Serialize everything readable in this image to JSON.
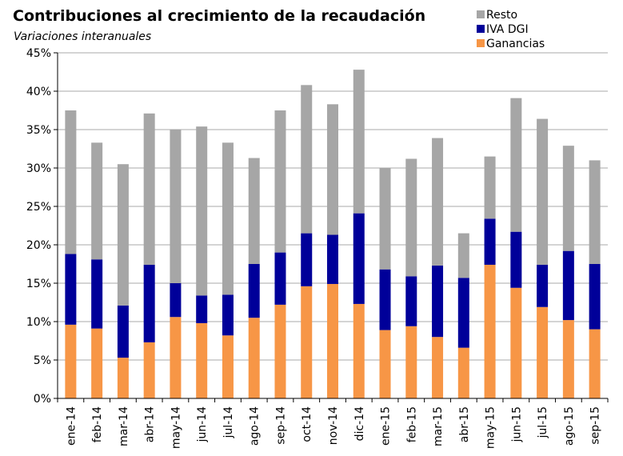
{
  "chart_data": {
    "type": "bar",
    "stacked": true,
    "title": "Contribuciones al crecimiento de la recaudación",
    "subtitle": "Variaciones interanuales",
    "categories": [
      "ene-14",
      "feb-14",
      "mar-14",
      "abr-14",
      "may-14",
      "jun-14",
      "jul-14",
      "ago-14",
      "sep-14",
      "oct-14",
      "nov-14",
      "dic-14",
      "ene-15",
      "feb-15",
      "mar-15",
      "abr-15",
      "may-15",
      "jun-15",
      "jul-15",
      "ago-15",
      "sep-15"
    ],
    "series": [
      {
        "name": "Ganancias",
        "color": "#F79646",
        "values": [
          9.6,
          9.1,
          5.3,
          7.3,
          10.6,
          9.8,
          8.2,
          10.5,
          12.2,
          14.6,
          14.9,
          12.3,
          8.9,
          9.4,
          8.0,
          6.6,
          17.4,
          14.4,
          11.9,
          10.2,
          9.0
        ]
      },
      {
        "name": "IVA DGI",
        "color": "#000099",
        "values": [
          9.2,
          9.0,
          6.8,
          10.1,
          4.4,
          3.6,
          5.3,
          7.0,
          6.8,
          6.9,
          6.4,
          11.8,
          7.9,
          6.5,
          9.3,
          9.1,
          6.0,
          7.3,
          5.5,
          9.0,
          8.5
        ]
      },
      {
        "name": "Resto",
        "color": "#A6A6A6",
        "values": [
          18.7,
          15.2,
          18.4,
          19.7,
          20.0,
          22.0,
          19.8,
          13.8,
          18.5,
          19.3,
          17.0,
          18.7,
          13.2,
          15.3,
          16.6,
          5.8,
          8.1,
          17.4,
          19.0,
          13.7,
          13.5
        ]
      }
    ],
    "ylim": [
      0,
      45
    ],
    "yticks": [
      "0%",
      "5%",
      "10%",
      "15%",
      "20%",
      "25%",
      "30%",
      "35%",
      "40%",
      "45%"
    ],
    "grid": true,
    "legend_position": "top-right"
  }
}
